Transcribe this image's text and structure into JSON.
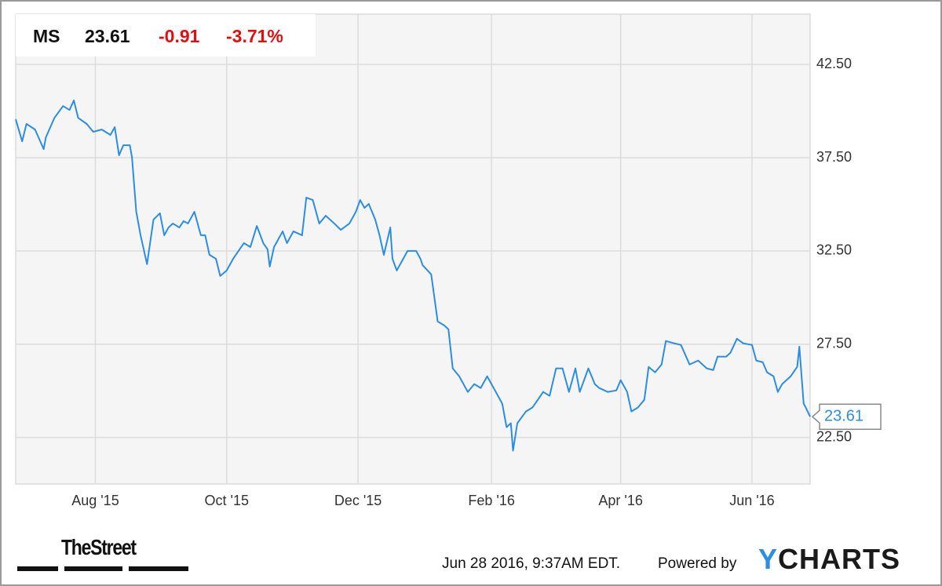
{
  "chart_data": {
    "type": "line",
    "header": {
      "symbol": "MS",
      "price": 23.61,
      "change": -0.91,
      "change_pct": "-3.71%"
    },
    "x": [
      -6,
      -3,
      -1,
      3,
      7,
      8,
      12,
      16,
      19,
      21,
      23,
      27,
      30,
      34,
      38,
      40,
      42,
      44,
      47,
      48,
      50,
      52,
      55,
      58,
      61,
      63,
      65,
      67,
      70,
      72,
      74,
      77,
      80,
      82,
      84,
      87,
      89,
      92,
      95,
      98,
      100,
      103,
      106,
      109,
      111,
      112,
      114,
      118,
      120,
      123,
      127,
      129,
      132,
      135,
      138,
      142,
      145,
      149,
      152,
      154,
      156,
      158,
      161,
      163,
      165,
      168,
      169,
      171,
      173,
      176,
      180,
      182,
      183,
      187,
      190,
      193,
      195,
      197,
      200,
      204,
      207,
      210,
      213,
      215,
      217,
      220,
      222,
      224,
      225,
      227,
      231,
      234,
      236,
      239,
      242,
      245,
      248,
      251,
      254,
      256,
      260,
      263,
      265,
      269,
      273,
      275,
      278,
      280,
      283,
      286,
      288,
      291,
      294,
      296,
      300,
      303,
      307,
      311,
      315,
      318,
      320,
      324,
      326,
      329,
      332,
      336,
      338,
      341,
      343,
      346,
      348,
      350,
      354,
      357,
      358,
      360,
      361,
      363
    ],
    "series": [
      {
        "color": "#2b8de3",
        "values": [
          39.56,
          38.38,
          39.31,
          39.01,
          37.96,
          38.59,
          39.64,
          40.27,
          40.06,
          40.57,
          39.64,
          39.31,
          38.89,
          39.01,
          38.72,
          39.14,
          37.63,
          38.17,
          38.17,
          37.54,
          34.6,
          33.34,
          31.79,
          34.18,
          34.52,
          33.34,
          33.76,
          33.97,
          33.76,
          34.1,
          33.97,
          34.6,
          33.34,
          33.34,
          32.29,
          32.08,
          31.16,
          31.45,
          32.08,
          32.58,
          32.92,
          32.71,
          33.84,
          32.92,
          32.58,
          31.66,
          32.71,
          33.55,
          32.92,
          33.55,
          33.34,
          35.36,
          35.23,
          33.97,
          34.39,
          33.97,
          33.63,
          33.97,
          34.6,
          35.23,
          34.81,
          35.02,
          34.18,
          33.34,
          32.29,
          33.76,
          32.08,
          31.45,
          31.87,
          32.5,
          32.5,
          32.08,
          31.74,
          31.24,
          28.72,
          28.51,
          28.3,
          26.2,
          25.78,
          24.94,
          25.36,
          25.15,
          25.78,
          25.36,
          24.94,
          24.31,
          23.05,
          23.26,
          21.79,
          23.26,
          23.89,
          24.1,
          24.43,
          24.94,
          24.73,
          26.2,
          26.2,
          24.94,
          26.2,
          24.94,
          26.2,
          25.36,
          25.15,
          24.94,
          25.02,
          25.57,
          24.94,
          23.89,
          24.1,
          24.52,
          26.28,
          25.99,
          26.41,
          27.67,
          27.54,
          27.46,
          26.41,
          26.62,
          26.2,
          26.11,
          26.83,
          26.83,
          27.04,
          27.79,
          27.54,
          27.46,
          26.62,
          26.53,
          25.99,
          25.78,
          24.94,
          25.36,
          25.78,
          26.28,
          27.37,
          24.31,
          24.1,
          23.61
        ]
      }
    ],
    "xlim": [
      -6,
      363
    ],
    "xticks": [
      {
        "value": 31,
        "label": "Aug '15"
      },
      {
        "value": 92,
        "label": "Oct '15"
      },
      {
        "value": 153,
        "label": "Dec '15"
      },
      {
        "value": 215,
        "label": "Feb '16"
      },
      {
        "value": 275,
        "label": "Apr '16"
      },
      {
        "value": 336,
        "label": "Jun '16"
      }
    ],
    "ylim": [
      20,
      45.2
    ],
    "yticks": [
      {
        "value": 22.5,
        "label": "22.50"
      },
      {
        "value": 27.5,
        "label": "27.50"
      },
      {
        "value": 32.5,
        "label": "32.50"
      },
      {
        "value": 37.5,
        "label": "37.50"
      },
      {
        "value": 42.5,
        "label": "42.50"
      }
    ],
    "grid": true
  },
  "footer": {
    "source": "TheStreet",
    "timestamp": "Jun 28 2016, 9:37AM EDT.",
    "powered_by": "Powered by",
    "brand": "YCHARTS"
  }
}
